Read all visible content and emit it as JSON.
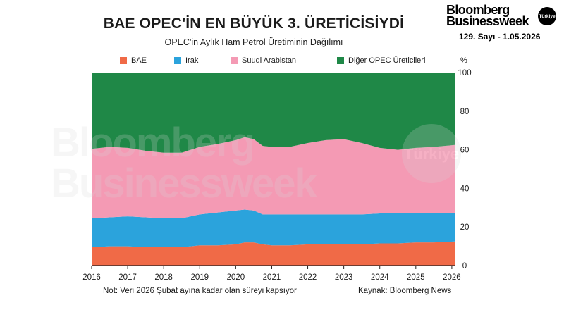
{
  "header": {
    "title": "BAE OPEC'İN EN BÜYÜK 3. ÜRETİCİSİYDİ",
    "subtitle": "OPEC'in Aylık Ham Petrol Üretiminin Dağılımı"
  },
  "brand": {
    "line1": "Bloomberg",
    "line2": "Businessweek",
    "badge": "Türkiye",
    "issue": "129. Sayı - 1.05.2026"
  },
  "watermark": {
    "line1": "Bloomberg",
    "line2": "Businessweek",
    "badge": "Türkiye"
  },
  "footer": {
    "note": "Not: Veri 2026 Şubat ayına kadar olan süreyi kapsıyor",
    "source": "Kaynak: Bloomberg News"
  },
  "chart_data": {
    "type": "area",
    "stacked": true,
    "title": "BAE OPEC'İN EN BÜYÜK 3. ÜRETİCİSİYDİ",
    "subtitle": "OPEC'in Aylık Ham Petrol Üretiminin Dağılımı",
    "ylabel": "%",
    "ylim": [
      0,
      100
    ],
    "yticks": [
      0,
      20,
      40,
      60,
      80,
      100
    ],
    "xlim": [
      2016,
      2026.08
    ],
    "xticks": [
      2016,
      2017,
      2018,
      2019,
      2020,
      2021,
      2022,
      2023,
      2024,
      2025,
      2026
    ],
    "legend_position": "top",
    "grid": false,
    "x": [
      2016.0,
      2016.5,
      2017.0,
      2017.5,
      2018.0,
      2018.5,
      2019.0,
      2019.5,
      2020.0,
      2020.25,
      2020.5,
      2020.75,
      2021.0,
      2021.5,
      2022.0,
      2022.5,
      2023.0,
      2023.5,
      2024.0,
      2024.5,
      2025.0,
      2025.5,
      2026.08
    ],
    "series": [
      {
        "name": "BAE",
        "color": "#f06a47",
        "values": [
          9.5,
          10,
          10,
          9.5,
          9.5,
          9.5,
          10.5,
          10.5,
          11,
          12,
          12,
          11,
          10.5,
          10.5,
          11,
          11,
          11,
          11,
          11.5,
          11.5,
          12,
          12,
          12.5
        ]
      },
      {
        "name": "Irak",
        "color": "#2ba3dc",
        "values": [
          15,
          15,
          15.5,
          15.5,
          15,
          15,
          16,
          17,
          17.5,
          17,
          16.5,
          15.5,
          16,
          16,
          15.5,
          15.5,
          15.5,
          15.5,
          15.5,
          15.5,
          15,
          15,
          14.5
        ]
      },
      {
        "name": "Suudi Arabistan",
        "color": "#f49ab4",
        "values": [
          36,
          36.5,
          35.5,
          34.5,
          34,
          34,
          35,
          35.5,
          36.5,
          37.5,
          37,
          35.5,
          35,
          35,
          37,
          38.5,
          39,
          37,
          34,
          33,
          34,
          34.5,
          35.5
        ]
      },
      {
        "name": "Diğer OPEC Üreticileri",
        "color": "#1f8847",
        "values": [
          39.5,
          38.5,
          39,
          40.5,
          41.5,
          41.5,
          38.5,
          37,
          35,
          33.5,
          34.5,
          38,
          38.5,
          38.5,
          36.5,
          35,
          34.5,
          36.5,
          39,
          40,
          39,
          38.5,
          37.5
        ]
      }
    ]
  }
}
